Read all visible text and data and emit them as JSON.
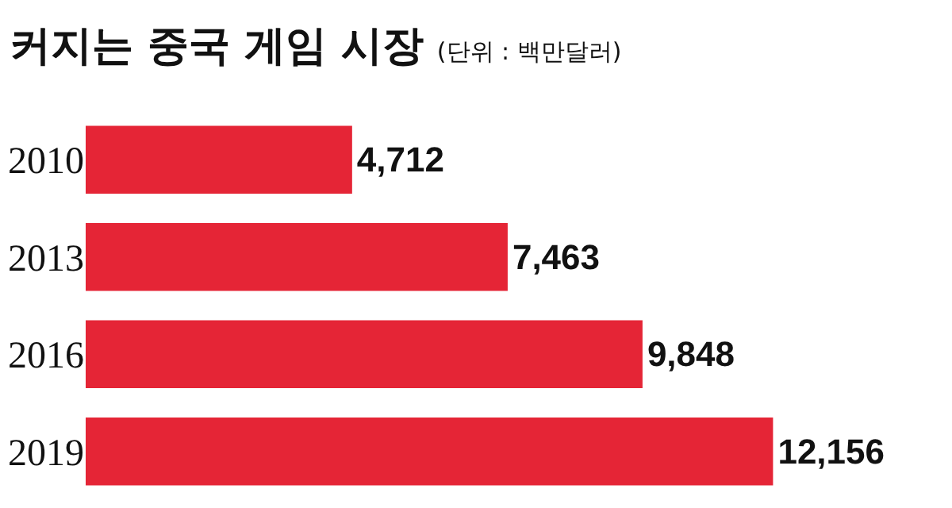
{
  "chart_data": {
    "type": "bar",
    "orientation": "horizontal",
    "title": "커지는 중국 게임 시장",
    "subtitle": "(단위 : 백만달러)",
    "categories": [
      "2010",
      "2013",
      "2016",
      "2019"
    ],
    "values": [
      4712,
      7463,
      9848,
      12156
    ],
    "color": "#e52536",
    "value_labels": [
      "4,712",
      "7,463",
      "9,848",
      "12,156"
    ],
    "tick_labels": "y"
  }
}
